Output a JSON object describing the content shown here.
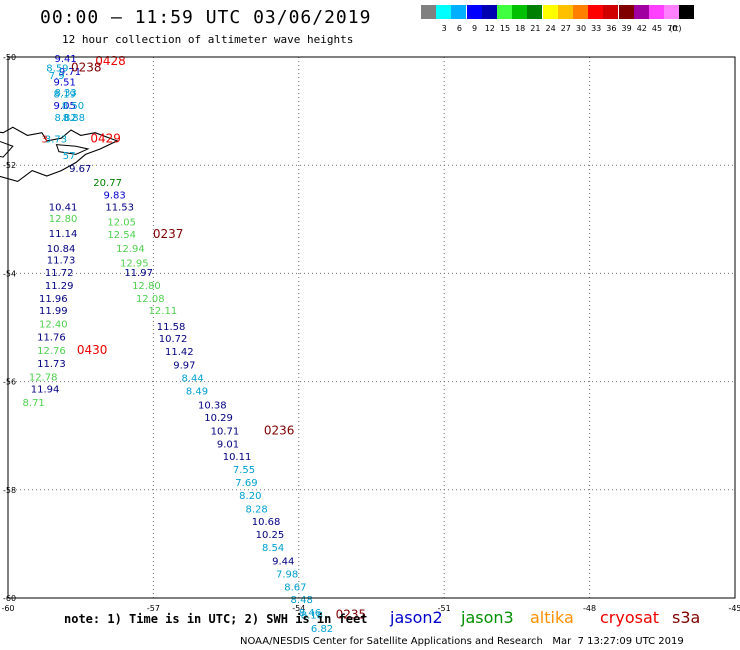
{
  "header": {
    "title": "00:00 – 11:59 UTC 03/06/2019",
    "subtitle": "12 hour collection of altimeter wave heights"
  },
  "colorbar": {
    "swatches": [
      {
        "color": "#808080",
        "label": ""
      },
      {
        "color": "#00ffff",
        "label": "3"
      },
      {
        "color": "#00b0ff",
        "label": "6"
      },
      {
        "color": "#0000ff",
        "label": "9"
      },
      {
        "color": "#0000b0",
        "label": "12"
      },
      {
        "color": "#40ff40",
        "label": "15"
      },
      {
        "color": "#00c000",
        "label": "18"
      },
      {
        "color": "#008000",
        "label": "21"
      },
      {
        "color": "#ffff00",
        "label": "24"
      },
      {
        "color": "#ffc000",
        "label": "27"
      },
      {
        "color": "#ff8000",
        "label": "30"
      },
      {
        "color": "#ff0000",
        "label": "33"
      },
      {
        "color": "#d00000",
        "label": "36"
      },
      {
        "color": "#800000",
        "label": "39"
      },
      {
        "color": "#a000a0",
        "label": "42"
      },
      {
        "color": "#ff40ff",
        "label": "45"
      },
      {
        "color": "#ff80ff",
        "label": "70"
      },
      {
        "color": "#000000",
        "label": ""
      }
    ],
    "unit": "(ft)"
  },
  "axes": {
    "x_ticks": [
      "-60",
      "-57",
      "-54",
      "-51",
      "-48",
      "-45"
    ],
    "y_ticks": [
      "-50",
      "-52",
      "-54",
      "-56",
      "-58",
      "-60"
    ]
  },
  "colors": {
    "blue": "#0000cc",
    "darkblue": "#000080",
    "cyan": "#00a0d0",
    "green": "#50d050",
    "darkgreen": "#008000",
    "red": "#ee0000",
    "maroon": "#800000"
  },
  "labels": [
    {
      "text": "9.41",
      "lon": -59.04,
      "lat": -50.09,
      "color": "blue"
    },
    {
      "text": "0428",
      "lon": -58.2,
      "lat": -50.15,
      "color": "red"
    },
    {
      "text": "9.71",
      "lon": -58.95,
      "lat": -50.33,
      "color": "blue"
    },
    {
      "text": "0238",
      "lon": -58.7,
      "lat": -50.27,
      "color": "maroon"
    },
    {
      "text": "8.59",
      "lon": -59.21,
      "lat": -50.27,
      "color": "cyan"
    },
    {
      "text": "7.9",
      "lon": -59.16,
      "lat": -50.41,
      "color": "cyan"
    },
    {
      "text": "9.51",
      "lon": -59.06,
      "lat": -50.53,
      "color": "blue"
    },
    {
      "text": "8.33",
      "lon": -59.04,
      "lat": -50.72,
      "color": "cyan"
    },
    {
      "text": "8.19",
      "lon": -59.06,
      "lat": -50.75,
      "color": "cyan"
    },
    {
      "text": "9.05",
      "lon": -59.06,
      "lat": -50.96,
      "color": "blue"
    },
    {
      "text": "8.50",
      "lon": -58.89,
      "lat": -50.96,
      "color": "cyan"
    },
    {
      "text": "8.82",
      "lon": -59.04,
      "lat": -51.18,
      "color": "cyan"
    },
    {
      "text": "8.88",
      "lon": -58.87,
      "lat": -51.18,
      "color": "cyan"
    },
    {
      "text": "3",
      "lon": -59.31,
      "lat": -51.58,
      "color": "red"
    },
    {
      "text": "3.73",
      "lon": -59.24,
      "lat": -51.58,
      "color": "cyan"
    },
    {
      "text": "0429",
      "lon": -58.3,
      "lat": -51.58,
      "color": "red"
    },
    {
      "text": "57",
      "lon": -58.87,
      "lat": -51.89,
      "color": "cyan"
    },
    {
      "text": "9.67",
      "lon": -58.74,
      "lat": -52.13,
      "color": "darkblue"
    },
    {
      "text": "20.77",
      "lon": -58.24,
      "lat": -52.38,
      "color": "darkgreen"
    },
    {
      "text": "9.83",
      "lon": -58.03,
      "lat": -52.62,
      "color": "blue"
    },
    {
      "text": "10.41",
      "lon": -59.16,
      "lat": -52.84,
      "color": "darkblue"
    },
    {
      "text": "11.53",
      "lon": -57.99,
      "lat": -52.84,
      "color": "darkblue"
    },
    {
      "text": "12.80",
      "lon": -59.16,
      "lat": -53.05,
      "color": "green"
    },
    {
      "text": "12.05",
      "lon": -57.95,
      "lat": -53.11,
      "color": "green"
    },
    {
      "text": "11.14",
      "lon": -59.16,
      "lat": -53.33,
      "color": "darkblue"
    },
    {
      "text": "12.54",
      "lon": -57.95,
      "lat": -53.35,
      "color": "green"
    },
    {
      "text": "0237",
      "lon": -57.01,
      "lat": -53.35,
      "color": "maroon"
    },
    {
      "text": "10.84",
      "lon": -59.2,
      "lat": -53.6,
      "color": "darkblue"
    },
    {
      "text": "12.94",
      "lon": -57.77,
      "lat": -53.6,
      "color": "green"
    },
    {
      "text": "11.73",
      "lon": -59.2,
      "lat": -53.82,
      "color": "darkblue"
    },
    {
      "text": "12.95",
      "lon": -57.69,
      "lat": -53.87,
      "color": "green"
    },
    {
      "text": "11.72",
      "lon": -59.24,
      "lat": -54.05,
      "color": "darkblue"
    },
    {
      "text": "11.97",
      "lon": -57.6,
      "lat": -54.05,
      "color": "darkblue"
    },
    {
      "text": "11.29",
      "lon": -59.24,
      "lat": -54.29,
      "color": "darkblue"
    },
    {
      "text": "12.80",
      "lon": -57.44,
      "lat": -54.29,
      "color": "green"
    },
    {
      "text": "11.96",
      "lon": -59.36,
      "lat": -54.53,
      "color": "darkblue"
    },
    {
      "text": "12.08",
      "lon": -57.36,
      "lat": -54.53,
      "color": "green"
    },
    {
      "text": "11.99",
      "lon": -59.36,
      "lat": -54.75,
      "color": "darkblue"
    },
    {
      "text": "12.11",
      "lon": -57.1,
      "lat": -54.75,
      "color": "green"
    },
    {
      "text": "12.40",
      "lon": -59.36,
      "lat": -55.0,
      "color": "green"
    },
    {
      "text": "11.58",
      "lon": -56.93,
      "lat": -55.05,
      "color": "darkblue"
    },
    {
      "text": "11.76",
      "lon": -59.4,
      "lat": -55.24,
      "color": "darkblue"
    },
    {
      "text": "10.72",
      "lon": -56.89,
      "lat": -55.27,
      "color": "darkblue"
    },
    {
      "text": "12.76",
      "lon": -59.4,
      "lat": -55.49,
      "color": "green"
    },
    {
      "text": "0430",
      "lon": -58.58,
      "lat": -55.49,
      "color": "red"
    },
    {
      "text": "11.42",
      "lon": -56.76,
      "lat": -55.51,
      "color": "darkblue"
    },
    {
      "text": "11.73",
      "lon": -59.4,
      "lat": -55.73,
      "color": "darkblue"
    },
    {
      "text": "9.97",
      "lon": -56.59,
      "lat": -55.76,
      "color": "darkblue"
    },
    {
      "text": "12.78",
      "lon": -59.57,
      "lat": -55.98,
      "color": "green"
    },
    {
      "text": "8.44",
      "lon": -56.42,
      "lat": -56.0,
      "color": "cyan"
    },
    {
      "text": "11.94",
      "lon": -59.53,
      "lat": -56.2,
      "color": "darkblue"
    },
    {
      "text": "8.49",
      "lon": -56.33,
      "lat": -56.24,
      "color": "cyan"
    },
    {
      "text": "8.71",
      "lon": -59.7,
      "lat": -56.45,
      "color": "green"
    },
    {
      "text": "10.38",
      "lon": -56.08,
      "lat": -56.5,
      "color": "darkblue"
    },
    {
      "text": "10.29",
      "lon": -55.95,
      "lat": -56.73,
      "color": "darkblue"
    },
    {
      "text": "10.71",
      "lon": -55.82,
      "lat": -56.98,
      "color": "darkblue"
    },
    {
      "text": "0236",
      "lon": -54.72,
      "lat": -56.98,
      "color": "maroon"
    },
    {
      "text": "9.01",
      "lon": -55.69,
      "lat": -57.22,
      "color": "darkblue"
    },
    {
      "text": "10.11",
      "lon": -55.57,
      "lat": -57.45,
      "color": "darkblue"
    },
    {
      "text": "7.55",
      "lon": -55.36,
      "lat": -57.69,
      "color": "cyan"
    },
    {
      "text": "7.69",
      "lon": -55.31,
      "lat": -57.93,
      "color": "cyan"
    },
    {
      "text": "8.20",
      "lon": -55.23,
      "lat": -58.17,
      "color": "cyan"
    },
    {
      "text": "8.28",
      "lon": -55.1,
      "lat": -58.42,
      "color": "cyan"
    },
    {
      "text": "10.68",
      "lon": -54.97,
      "lat": -58.65,
      "color": "darkblue"
    },
    {
      "text": "10.25",
      "lon": -54.89,
      "lat": -58.89,
      "color": "darkblue"
    },
    {
      "text": "8.54",
      "lon": -54.76,
      "lat": -59.13,
      "color": "cyan"
    },
    {
      "text": "9.44",
      "lon": -54.55,
      "lat": -59.38,
      "color": "darkblue"
    },
    {
      "text": "7.98",
      "lon": -54.47,
      "lat": -59.62,
      "color": "cyan"
    },
    {
      "text": "8.67",
      "lon": -54.3,
      "lat": -59.86,
      "color": "cyan"
    },
    {
      "text": "8.48",
      "lon": -54.17,
      "lat": -60.09,
      "color": "cyan"
    },
    {
      "text": "8.46",
      "lon": -54.0,
      "lat": -60.33,
      "color": "cyan"
    },
    {
      "text": "8.18",
      "lon": -53.96,
      "lat": -60.38,
      "color": "cyan"
    },
    {
      "text": "0235",
      "lon": -53.24,
      "lat": -60.38,
      "color": "maroon"
    },
    {
      "text": "6.82",
      "lon": -53.75,
      "lat": -60.63,
      "color": "cyan"
    }
  ],
  "footer": {
    "note": "note: 1) Time is in UTC; 2) SWH is in feet",
    "missions": [
      {
        "name": "jason2",
        "color": "#0000cc"
      },
      {
        "name": "jason3",
        "color": "#009000"
      },
      {
        "name": "altika",
        "color": "#ff9000"
      },
      {
        "name": "cryosat",
        "color": "#ee0000"
      },
      {
        "name": "s3a",
        "color": "#800000"
      }
    ],
    "credit": "NOAA/NESDIS Center for Satellite Applications and Research   Mar  7 13:27:09 UTC 2019"
  }
}
